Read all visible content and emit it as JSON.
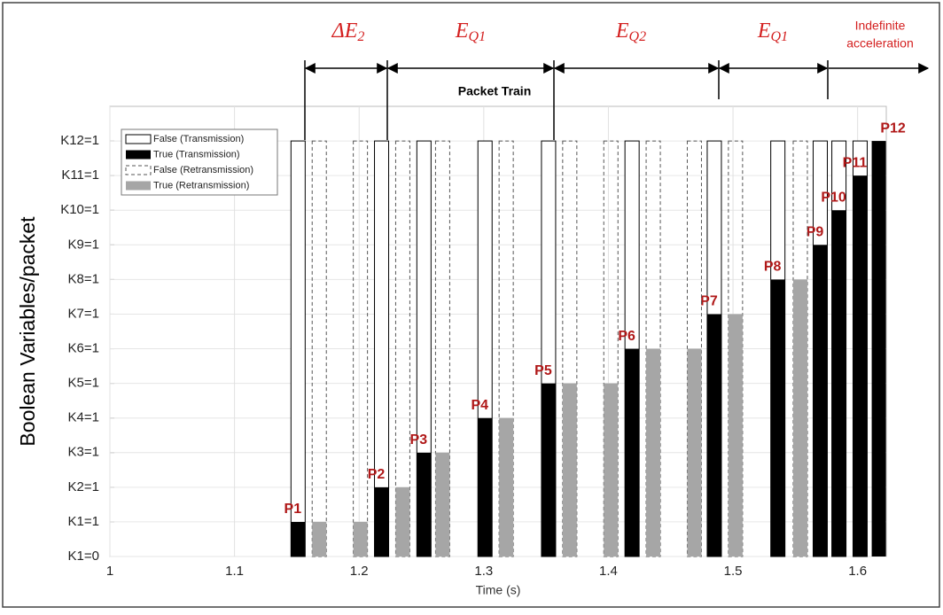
{
  "chart_data": {
    "type": "bar",
    "title": "Packet Train",
    "x_label": "Time (s)",
    "y_label": "Boolean Variables/packet",
    "xlim": [
      1,
      1.623
    ],
    "ylim": [
      0,
      13
    ],
    "xticks": [
      1,
      1.1,
      1.2,
      1.3,
      1.4,
      1.5,
      1.6
    ],
    "yticks": [
      {
        "value": 0,
        "label": "K1=0"
      },
      {
        "value": 1,
        "label": "K1=1"
      },
      {
        "value": 2,
        "label": "K2=1"
      },
      {
        "value": 3,
        "label": "K3=1"
      },
      {
        "value": 4,
        "label": "K4=1"
      },
      {
        "value": 5,
        "label": "K5=1"
      },
      {
        "value": 6,
        "label": "K6=1"
      },
      {
        "value": 7,
        "label": "K7=1"
      },
      {
        "value": 8,
        "label": "K8=1"
      },
      {
        "value": 9,
        "label": "K9=1"
      },
      {
        "value": 10,
        "label": "K10=1"
      },
      {
        "value": 11,
        "label": "K11=1"
      },
      {
        "value": 12,
        "label": "K12=1"
      }
    ],
    "grid": true,
    "legend": "upper left",
    "series": [
      {
        "name": "False (Transmission)",
        "style": "outline",
        "color": "#000000",
        "x": [
          1.151,
          1.218,
          1.252,
          1.301,
          1.352,
          1.419,
          1.485,
          1.536,
          1.57,
          1.585,
          1.602
        ],
        "values": [
          12,
          12,
          12,
          12,
          12,
          12,
          12,
          12,
          12,
          12,
          12
        ]
      },
      {
        "name": "True (Transmission)",
        "style": "filled",
        "color": "#000000",
        "x": [
          1.151,
          1.218,
          1.252,
          1.301,
          1.352,
          1.419,
          1.485,
          1.536,
          1.57,
          1.585,
          1.602,
          1.617
        ],
        "values": [
          1,
          2,
          3,
          4,
          5,
          6,
          7,
          8,
          9,
          10,
          11,
          12
        ],
        "point_labels": [
          "P1",
          "P2",
          "P3",
          "P4",
          "P5",
          "P6",
          "P7",
          "P8",
          "P9",
          "P10",
          "P11",
          "P12"
        ]
      },
      {
        "name": "False (Retransmission)",
        "style": "dashed",
        "color": "#555555",
        "x": [
          1.168,
          1.201,
          1.235,
          1.267,
          1.318,
          1.369,
          1.402,
          1.436,
          1.469,
          1.502,
          1.554
        ],
        "values": [
          12,
          12,
          12,
          12,
          12,
          12,
          12,
          12,
          12,
          12,
          12
        ]
      },
      {
        "name": "True (Retransmission)",
        "style": "filled",
        "color": "#a6a6a6",
        "x": [
          1.168,
          1.201,
          1.235,
          1.267,
          1.318,
          1.369,
          1.402,
          1.436,
          1.469,
          1.502,
          1.554
        ],
        "values": [
          1,
          1,
          2,
          3,
          4,
          5,
          5,
          6,
          6,
          7,
          8
        ]
      }
    ],
    "annotations": [
      {
        "text": "ΔE",
        "subscript": "2"
      },
      {
        "text": "E",
        "subscript": "Q1"
      },
      {
        "text": "E",
        "subscript": "Q2"
      },
      {
        "text": "E",
        "subscript": "Q1"
      },
      {
        "text": "Indefinite",
        "text2": "acceleration"
      }
    ]
  }
}
